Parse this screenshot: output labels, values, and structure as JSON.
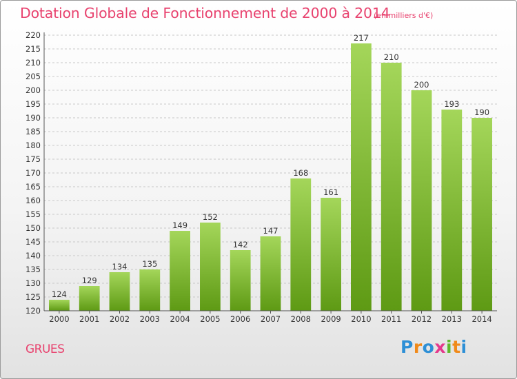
{
  "title": "Dotation Globale de Fonctionnement de 2000 à 2014",
  "unit_note": "(en milliers d'€)",
  "commune": "GRUES",
  "logo": {
    "letters": [
      "P",
      "r",
      "o",
      "x",
      "i",
      "t",
      "i"
    ],
    "colors": [
      "#2d8fd6",
      "#f08a1a",
      "#2d8fd6",
      "#e4398c",
      "#5eb82b",
      "#f08a1a",
      "#2d8fd6"
    ]
  },
  "colors": {
    "accent": "#e8436f",
    "bar_top": "#a4d65a",
    "bar_bottom": "#5e9a14",
    "grid": "#c8c8c8"
  },
  "chart_data": {
    "type": "bar",
    "categories": [
      "2000",
      "2001",
      "2002",
      "2003",
      "2004",
      "2005",
      "2006",
      "2007",
      "2008",
      "2009",
      "2010",
      "2011",
      "2012",
      "2013",
      "2014"
    ],
    "values": [
      124,
      129,
      134,
      135,
      149,
      152,
      142,
      147,
      168,
      161,
      217,
      210,
      200,
      193,
      190
    ],
    "ylim": [
      120,
      220
    ],
    "ytick_step": 5,
    "grid": "horizontal dashed",
    "legend": "none"
  }
}
